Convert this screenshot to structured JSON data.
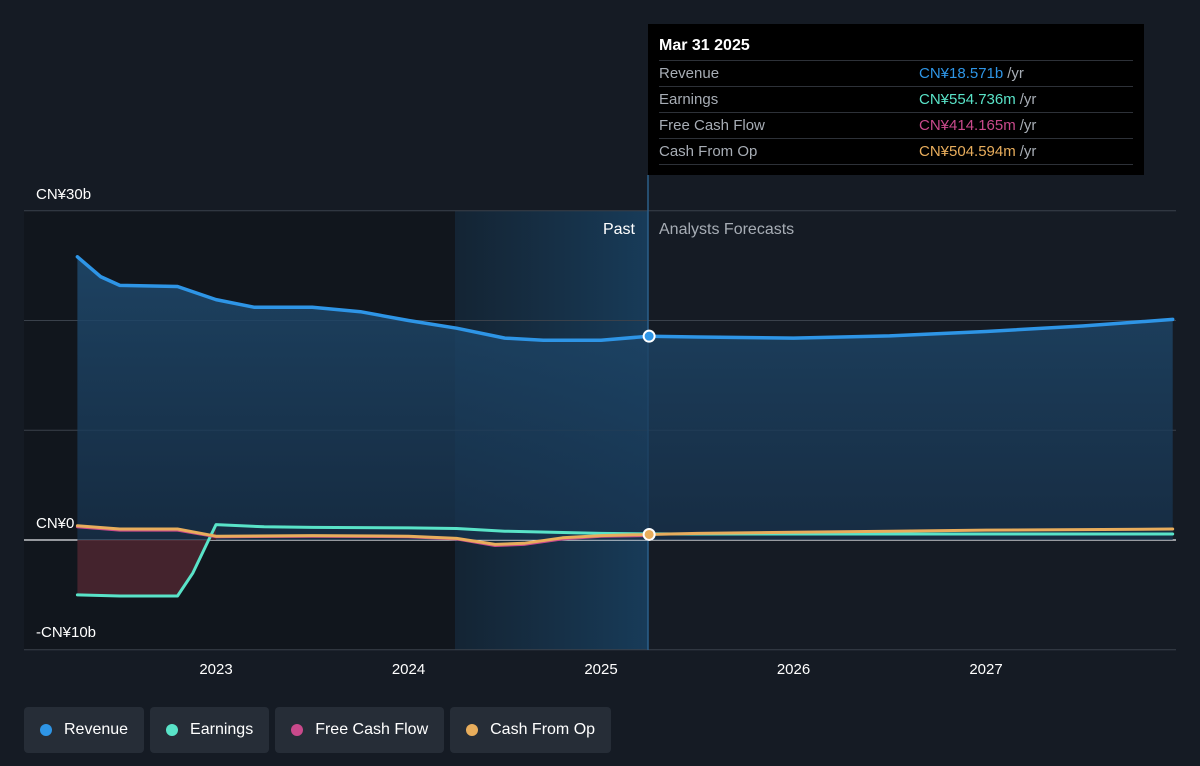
{
  "chart_data": {
    "type": "line",
    "y_tick_labels": [
      "CN¥30b",
      "CN¥0",
      "-CN¥10b"
    ],
    "ylim": [
      -10,
      30
    ],
    "x_tick_labels": [
      "2023",
      "2024",
      "2025",
      "2026",
      "2027"
    ],
    "past_label": "Past",
    "forecast_label": "Analysts Forecasts",
    "past_end": 2025.25,
    "series": [
      {
        "name": "Revenue",
        "color": "#2e95e6",
        "x": [
          2022.28,
          2022.4,
          2022.5,
          2022.8,
          2023.0,
          2023.2,
          2023.5,
          2023.75,
          2024.0,
          2024.25,
          2024.5,
          2024.7,
          2025.0,
          2025.25,
          2025.5,
          2026.0,
          2026.5,
          2027.0,
          2027.5,
          2027.97
        ],
        "y": [
          25.8,
          24.0,
          23.2,
          23.1,
          21.9,
          21.2,
          21.2,
          20.8,
          20.0,
          19.3,
          18.4,
          18.2,
          18.2,
          18.571,
          18.5,
          18.4,
          18.6,
          19.0,
          19.5,
          20.1
        ]
      },
      {
        "name": "Earnings",
        "color": "#59e3c8",
        "x": [
          2022.28,
          2022.5,
          2022.8,
          2022.88,
          2023.0,
          2023.25,
          2023.5,
          2024.0,
          2024.25,
          2024.5,
          2025.0,
          2025.25,
          2025.5,
          2026.0,
          2026.5,
          2027.0,
          2027.5,
          2027.97
        ],
        "y": [
          -5.0,
          -5.1,
          -5.1,
          -3.0,
          1.4,
          1.2,
          1.15,
          1.1,
          1.05,
          0.8,
          0.6,
          0.555,
          0.55,
          0.55,
          0.55,
          0.55,
          0.55,
          0.55
        ]
      },
      {
        "name": "Free Cash Flow",
        "color": "#c9498b",
        "x": [
          2022.28,
          2022.5,
          2022.8,
          2023.0,
          2023.5,
          2024.0,
          2024.25,
          2024.45,
          2024.6,
          2024.8,
          2025.0,
          2025.25
        ],
        "y": [
          1.2,
          0.9,
          0.9,
          0.3,
          0.35,
          0.3,
          0.1,
          -0.5,
          -0.4,
          0.1,
          0.35,
          0.414
        ]
      },
      {
        "name": "Cash From Op",
        "color": "#e8ad5c",
        "x": [
          2022.28,
          2022.5,
          2022.8,
          2023.0,
          2023.5,
          2024.0,
          2024.25,
          2024.45,
          2024.6,
          2024.8,
          2025.0,
          2025.25,
          2025.5,
          2026.0,
          2026.5,
          2027.0,
          2027.5,
          2027.97
        ],
        "y": [
          1.3,
          1.0,
          1.0,
          0.35,
          0.4,
          0.35,
          0.15,
          -0.4,
          -0.3,
          0.2,
          0.4,
          0.505,
          0.6,
          0.7,
          0.8,
          0.9,
          0.95,
          1.0
        ]
      }
    ]
  },
  "tooltip": {
    "date": "Mar 31 2025",
    "rows": [
      {
        "label": "Revenue",
        "value": "CN¥18.571b",
        "unit": "/yr",
        "color": "#2e95e6"
      },
      {
        "label": "Earnings",
        "value": "CN¥554.736m",
        "unit": "/yr",
        "color": "#59e3c8"
      },
      {
        "label": "Free Cash Flow",
        "value": "CN¥414.165m",
        "unit": "/yr",
        "color": "#c9498b"
      },
      {
        "label": "Cash From Op",
        "value": "CN¥504.594m",
        "unit": "/yr",
        "color": "#e8ad5c"
      }
    ]
  },
  "legend": [
    {
      "label": "Revenue",
      "color": "#2e95e6"
    },
    {
      "label": "Earnings",
      "color": "#59e3c8"
    },
    {
      "label": "Free Cash Flow",
      "color": "#c9498b"
    },
    {
      "label": "Cash From Op",
      "color": "#e8ad5c"
    }
  ]
}
